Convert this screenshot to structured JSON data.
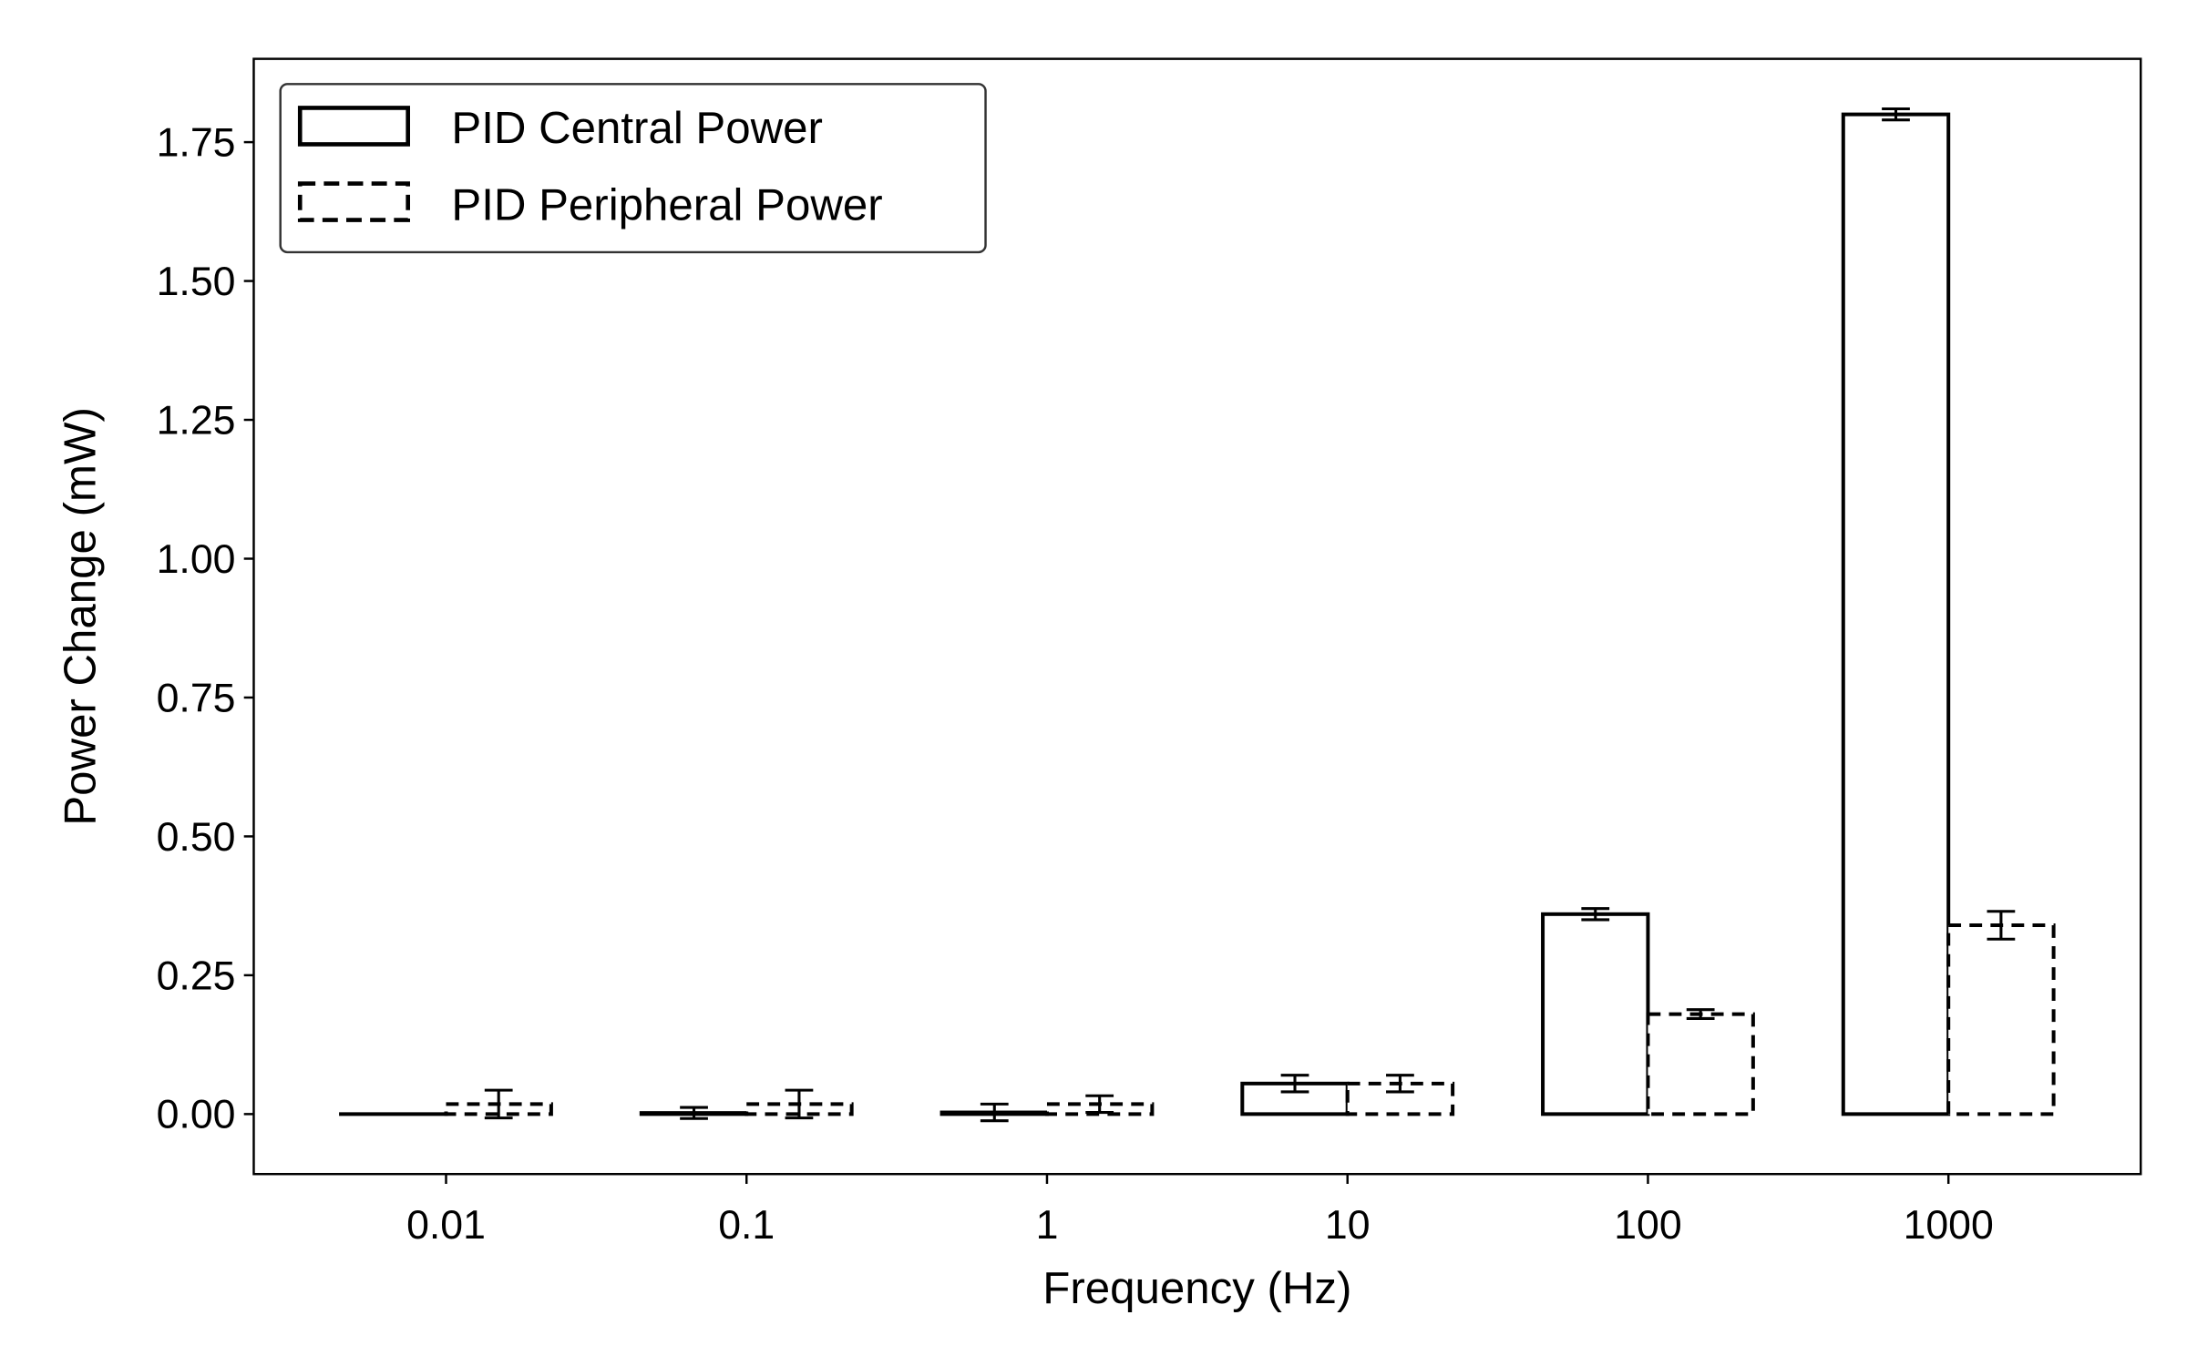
{
  "chart_data": {
    "type": "bar",
    "title": "",
    "xlabel": "Frequency (Hz)",
    "ylabel": "Power Change (mW)",
    "categories": [
      "0.01",
      "0.1",
      "1",
      "10",
      "100",
      "1000"
    ],
    "series": [
      {
        "name": "PID Central Power",
        "style": "solid",
        "values": [
          0.0,
          0.002,
          0.003,
          0.055,
          0.36,
          1.8
        ],
        "errors": [
          0.0,
          0.01,
          0.015,
          0.015,
          0.01,
          0.01
        ]
      },
      {
        "name": "PID Peripheral Power",
        "style": "dashed",
        "values": [
          0.018,
          0.018,
          0.018,
          0.055,
          0.18,
          0.34
        ],
        "errors": [
          0.025,
          0.025,
          0.015,
          0.015,
          0.008,
          0.025
        ]
      }
    ],
    "yticks": [
      "0.00",
      "0.25",
      "0.50",
      "0.75",
      "1.00",
      "1.25",
      "1.50",
      "1.75"
    ],
    "ylim": [
      -0.108,
      1.9
    ],
    "grid": false,
    "legend_position": "top-left",
    "colors": {
      "edge": "#000000",
      "fill": "#ffffff"
    }
  }
}
